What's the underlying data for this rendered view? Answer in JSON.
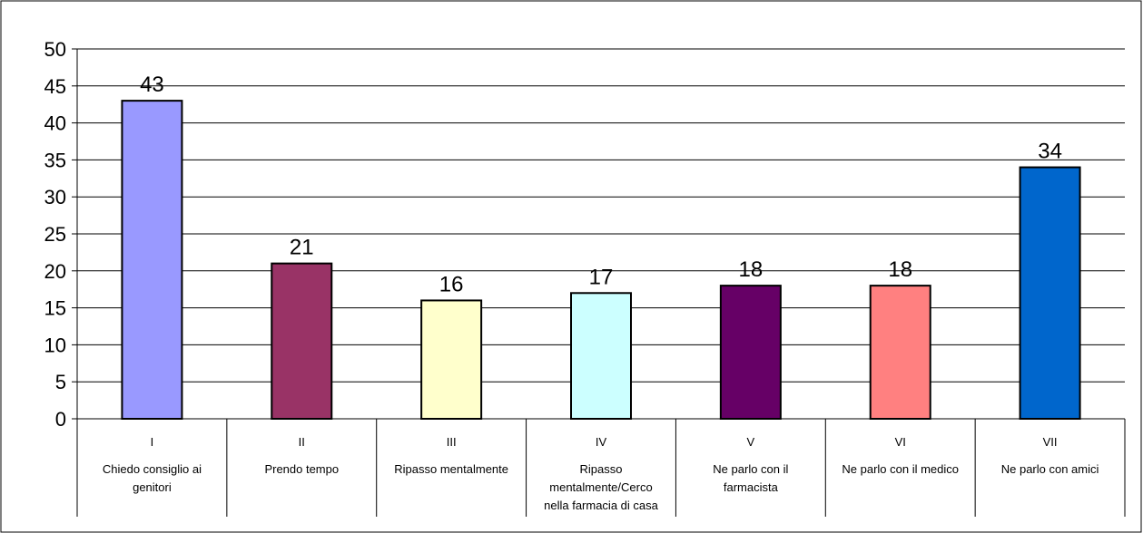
{
  "chart_data": {
    "type": "bar",
    "categories": [
      "I",
      "II",
      "III",
      "IV",
      "V",
      "VI",
      "VII"
    ],
    "category_descriptions": [
      "Chiedo consiglio ai genitori",
      "Prendo tempo",
      "Ripasso mentalmente",
      "Ripasso mentalmente/Cerco nella farmacia di casa",
      "Ne parlo con il farmacista",
      "Ne parlo con il medico",
      "Ne parlo con amici"
    ],
    "category_lines": [
      [
        "Chiedo consiglio ai",
        "genitori"
      ],
      [
        "Prendo tempo"
      ],
      [
        "Ripasso mentalmente"
      ],
      [
        "Ripasso",
        "mentalmente/Cerco",
        "nella farmacia di casa"
      ],
      [
        "Ne parlo con il",
        "farmacista"
      ],
      [
        "Ne parlo con il medico"
      ],
      [
        "Ne parlo con amici"
      ]
    ],
    "values": [
      43,
      21,
      16,
      17,
      18,
      18,
      34
    ],
    "value_labels": [
      "43",
      "21",
      "16",
      "17",
      "18",
      "18",
      "34"
    ],
    "bar_colors": [
      "#9999ff",
      "#993366",
      "#ffffcc",
      "#ccffff",
      "#660066",
      "#ff8080",
      "#0066cc"
    ],
    "ylim": [
      0,
      50
    ],
    "yticks": [
      0,
      5,
      10,
      15,
      20,
      25,
      30,
      35,
      40,
      45,
      50
    ],
    "ytick_labels": [
      "0",
      "5",
      "10",
      "15",
      "20",
      "25",
      "30",
      "35",
      "40",
      "45",
      "50"
    ],
    "grid": true,
    "legend": "none"
  }
}
